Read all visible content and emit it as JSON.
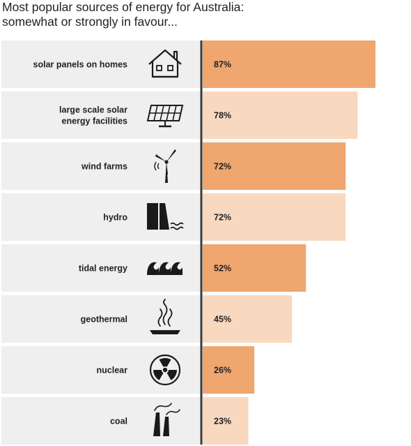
{
  "chart_data": {
    "type": "bar",
    "orientation": "horizontal",
    "title": "Most popular sources of energy for Australia:",
    "subtitle": "somewhat or strongly in favour...",
    "categories": [
      "solar panels on homes",
      "large scale solar energy facilities",
      "wind farms",
      "hydro",
      "tidal energy",
      "geothermal",
      "nuclear",
      "coal"
    ],
    "label_lines": [
      [
        "solar panels on homes"
      ],
      [
        "large scale solar",
        "energy facilities"
      ],
      [
        "wind farms"
      ],
      [
        "hydro"
      ],
      [
        "tidal energy"
      ],
      [
        "geothermal"
      ],
      [
        "nuclear"
      ],
      [
        "coal"
      ]
    ],
    "icons": [
      "house-icon",
      "solar-panel-icon",
      "wind-turbine-icon",
      "hydro-dam-icon",
      "tidal-wave-icon",
      "geothermal-icon",
      "radiation-icon",
      "smokestack-icon"
    ],
    "values": [
      87,
      78,
      72,
      72,
      52,
      45,
      26,
      23
    ],
    "value_labels": [
      "87%",
      "78%",
      "72%",
      "72%",
      "52%",
      "45%",
      "26%",
      "23%"
    ],
    "xlim": [
      0,
      100
    ],
    "xlabel": "",
    "ylabel": "",
    "grid": false,
    "legend": "none",
    "colors": {
      "bar_dark": "#efa66f",
      "bar_light": "#f8d9bf",
      "label_panel": "#efefef",
      "axis": "#3a3a3a",
      "icon": "#1a1a1a"
    }
  }
}
